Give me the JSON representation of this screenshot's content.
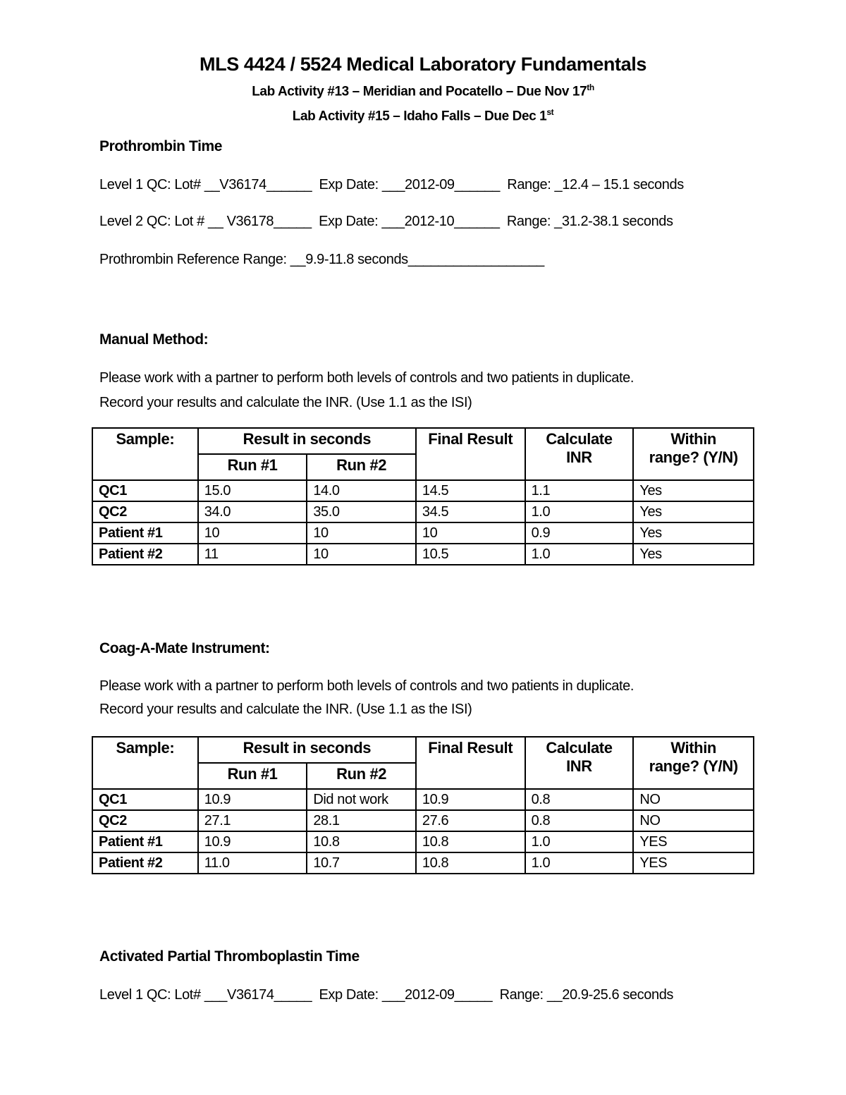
{
  "header": {
    "title": "MLS 4424 / 5524 Medical Laboratory Fundamentals",
    "line1": "Lab Activity #13 – Meridian and Pocatello – Due Nov 17",
    "line1_sup": "th",
    "line2": "Lab Activity #15 – Idaho Falls – Due Dec 1",
    "line2_sup": "st"
  },
  "pt": {
    "heading": "Prothrombin Time",
    "level1": "Level 1 QC: Lot# __V36174______  Exp Date: ___2012-09______  Range: _12.4 – 15.1 seconds",
    "level2": "Level 2 QC: Lot # __ V36178_____  Exp Date: ___2012-10______  Range: _31.2-38.1 seconds",
    "reference": "Prothrombin Reference Range: __9.9-11.8 seconds__________________"
  },
  "manual": {
    "heading": "Manual Method:",
    "instr1": "Please work with a partner to perform both levels of controls and two patients in duplicate.",
    "instr2": "Record your results and calculate the INR. (Use 1.1 as the ISI)",
    "headers": {
      "sample": "Sample:",
      "result": "Result in seconds",
      "run1": "Run #1",
      "run2": "Run #2",
      "final": "Final Result",
      "inr1": "Calculate",
      "inr2": "INR",
      "within1": "Within",
      "within2": "range? (Y/N)"
    },
    "rows": [
      [
        "QC1",
        "15.0",
        "14.0",
        "14.5",
        "1.1",
        "Yes"
      ],
      [
        "QC2",
        "34.0",
        "35.0",
        "34.5",
        "1.0",
        "Yes"
      ],
      [
        "Patient #1",
        "10",
        "10",
        "10",
        "0.9",
        "Yes"
      ],
      [
        "Patient #2",
        "11",
        "10",
        "10.5",
        "1.0",
        "Yes"
      ]
    ]
  },
  "coag": {
    "heading": "Coag-A-Mate Instrument:",
    "instr1": "Please work with a partner to perform both levels of controls and two patients in duplicate.",
    "instr2": "Record your results and calculate the INR. (Use 1.1 as the ISI)",
    "headers": {
      "sample": "Sample:",
      "result": "Result in seconds",
      "run1": "Run #1",
      "run2": "Run #2",
      "final": "Final Result",
      "inr1": "Calculate",
      "inr2": "INR",
      "within1": "Within",
      "within2": "range? (Y/N)"
    },
    "rows": [
      [
        "QC1",
        "10.9",
        "Did not work",
        "10.9",
        "0.8",
        "NO"
      ],
      [
        "QC2",
        "27.1",
        "28.1",
        "27.6",
        "0.8",
        "NO"
      ],
      [
        "Patient #1",
        "10.9",
        "10.8",
        "10.8",
        "1.0",
        "YES"
      ],
      [
        "Patient #2",
        "11.0",
        "10.7",
        "10.8",
        "1.0",
        "YES"
      ]
    ]
  },
  "aptt": {
    "heading": "Activated Partial Thromboplastin Time",
    "level1": "Level 1 QC: Lot# ___V36174_____  Exp Date: ___2012-09_____  Range: __20.9-25.6 seconds"
  }
}
